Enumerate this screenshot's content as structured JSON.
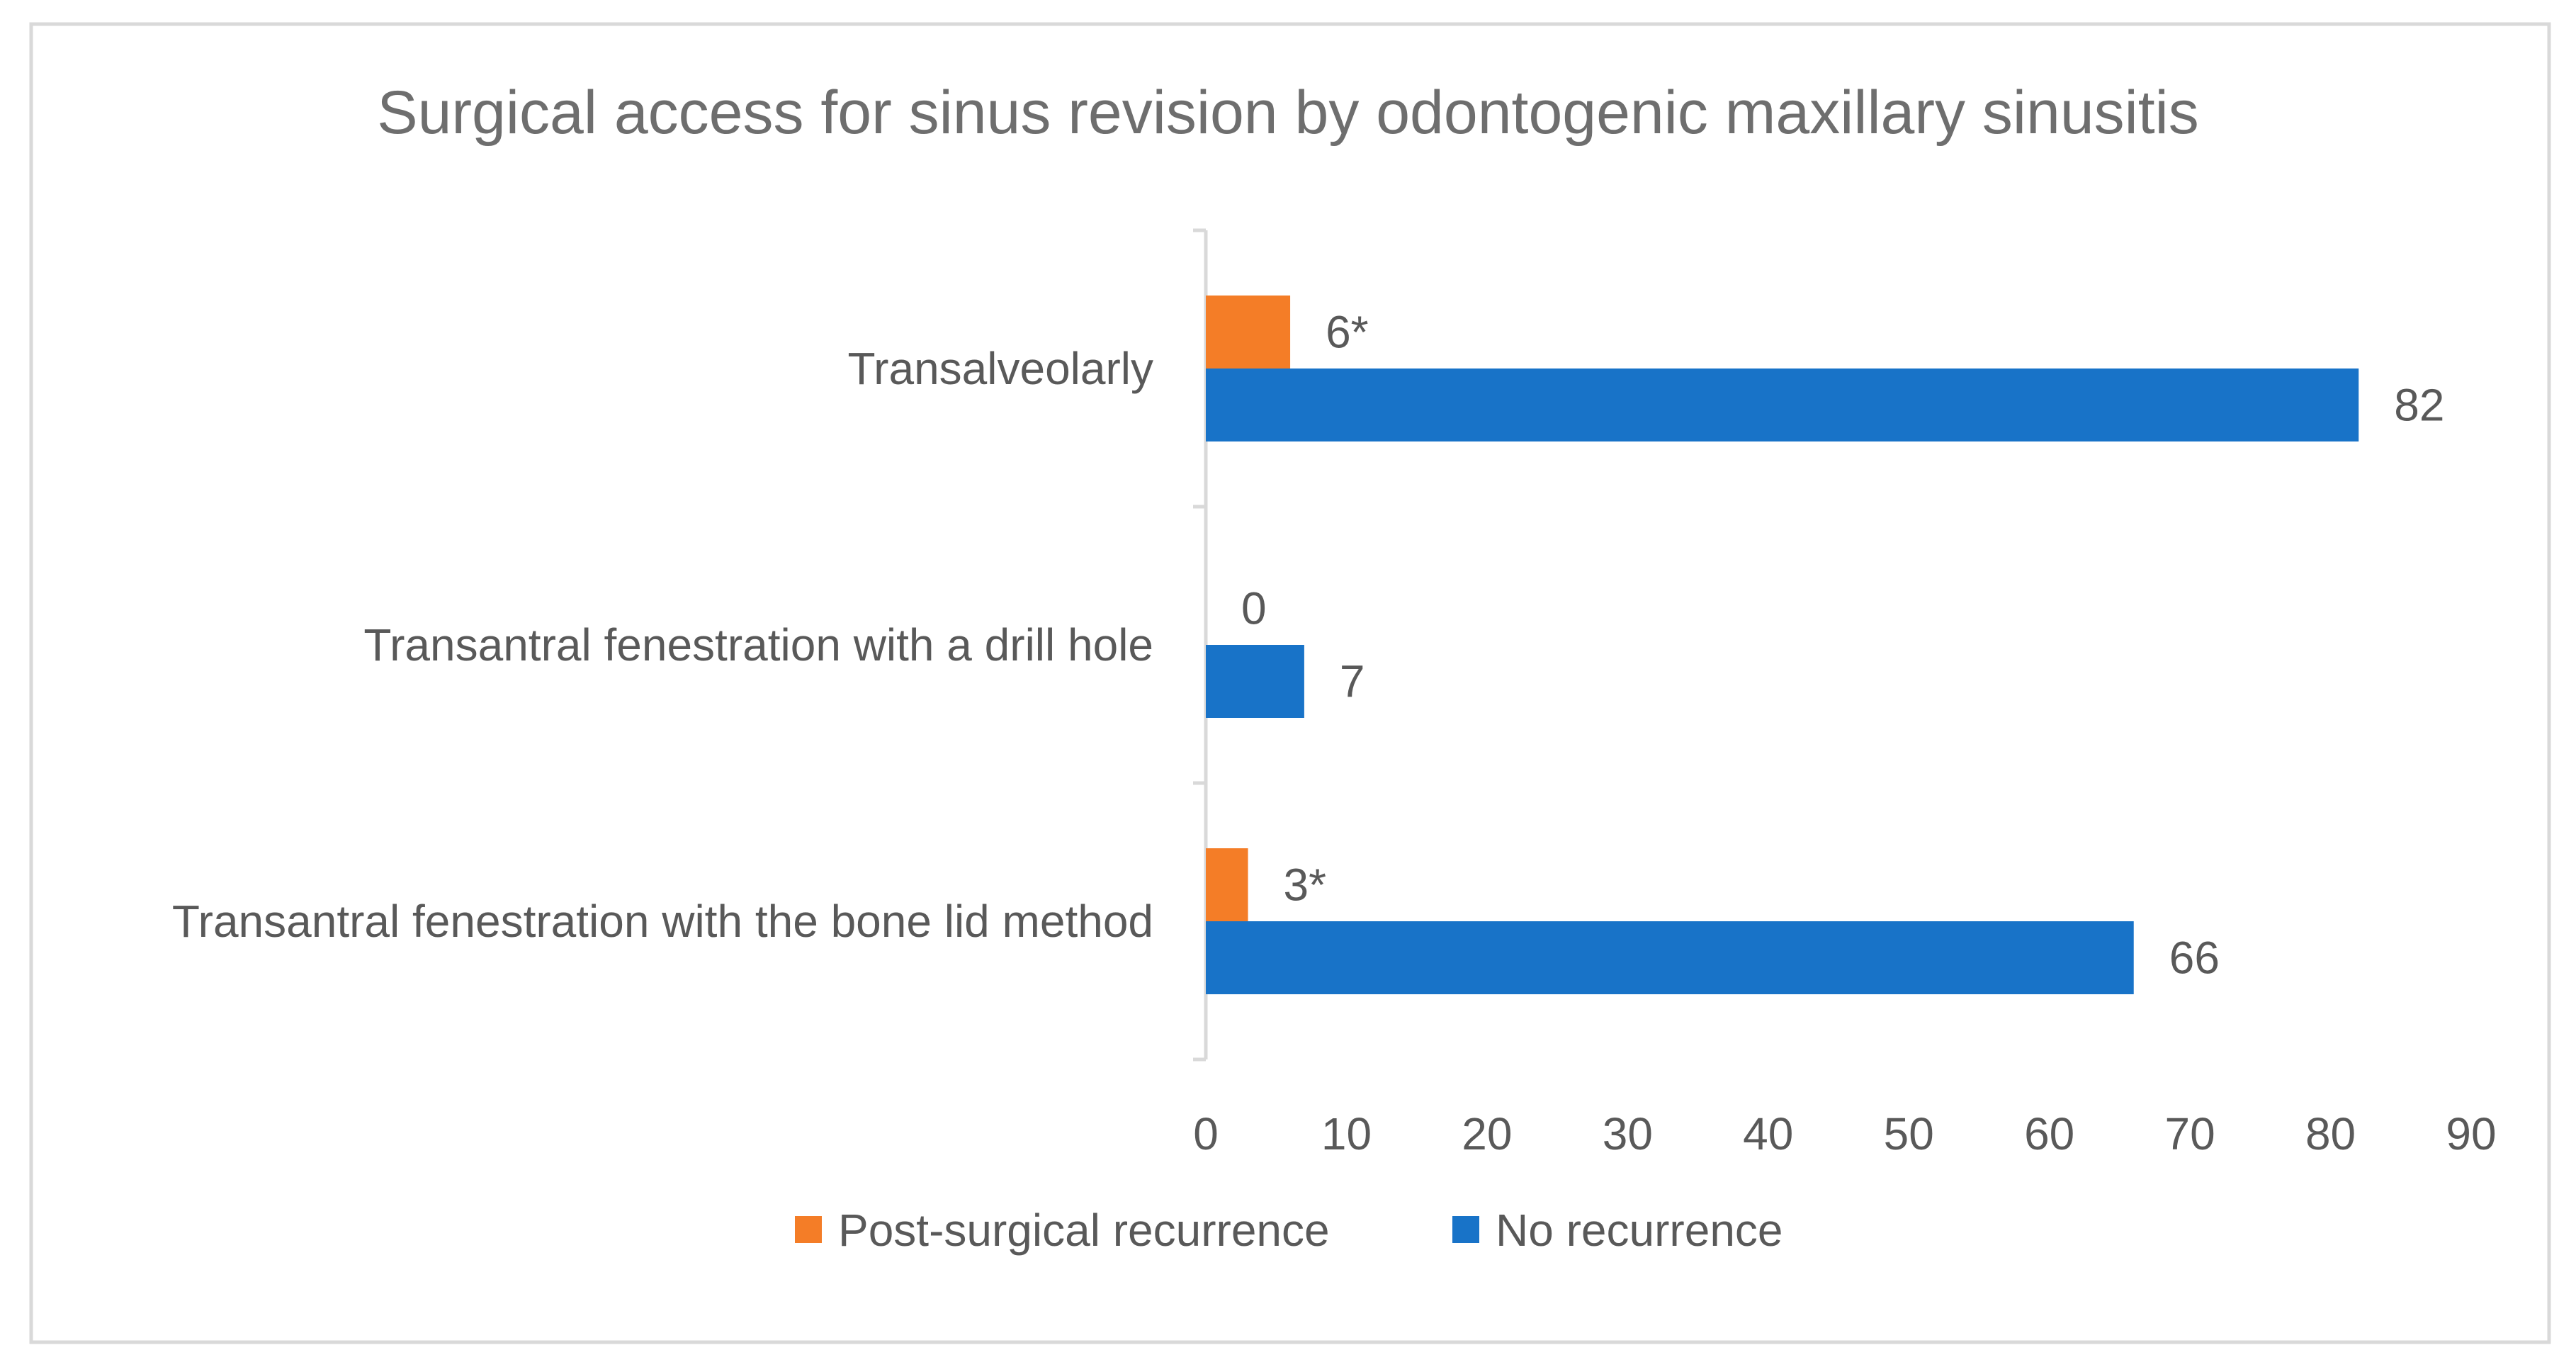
{
  "chart_data": {
    "type": "bar",
    "orientation": "horizontal",
    "title": "Surgical access for sinus revision by odontogenic maxillary sinusitis",
    "categories": [
      "Transalveolarly",
      "Transantral fenestration with a drill hole",
      "Transantral fenestration with the bone lid method"
    ],
    "series": [
      {
        "name": "Post-surgical recurrence",
        "color": "#F47D27",
        "values": [
          6,
          0,
          3
        ],
        "labels": [
          "6*",
          "0",
          "3*"
        ]
      },
      {
        "name": "No recurrence",
        "color": "#1873C8",
        "values": [
          82,
          7,
          66
        ],
        "labels": [
          "82",
          "7",
          "66"
        ]
      }
    ],
    "xlim": [
      0,
      90
    ],
    "xticks": [
      "0",
      "10",
      "20",
      "30",
      "40",
      "50",
      "60",
      "70",
      "80",
      "90"
    ],
    "xlabel": "",
    "ylabel": "",
    "grid": false,
    "legend_position": "bottom",
    "colors": {
      "title": "#6E6E6E",
      "text": "#595959",
      "axis": "#D9D9D9",
      "border": "#D9D9D9"
    }
  }
}
